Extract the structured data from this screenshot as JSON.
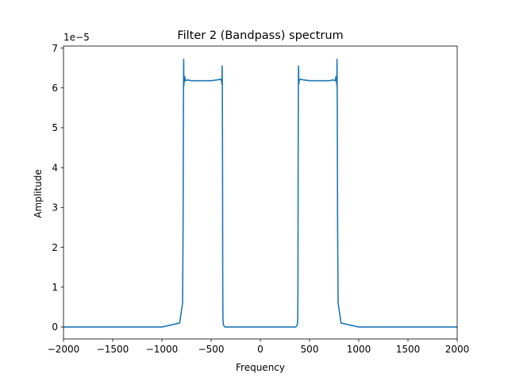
{
  "chart_data": {
    "type": "line",
    "title": "Filter 2 (Bandpass) spectrum",
    "xlabel": "Frequency",
    "ylabel": "Amplitude",
    "y_offset_label": "1e−5",
    "xlim": [
      -2000,
      2000
    ],
    "ylim": [
      -0.3,
      7.05
    ],
    "x_ticks": [
      -2000,
      -1500,
      -1000,
      -500,
      0,
      500,
      1000,
      1500,
      2000
    ],
    "x_tick_labels": [
      "−2000",
      "−1500",
      "−1000",
      "−500",
      "0",
      "500",
      "1000",
      "1500",
      "2000"
    ],
    "y_ticks": [
      0,
      1,
      2,
      3,
      4,
      5,
      6,
      7
    ],
    "y_tick_labels": [
      "0",
      "1",
      "2",
      "3",
      "4",
      "5",
      "6",
      "7"
    ],
    "grid": false,
    "legend": "none",
    "series": [
      {
        "color": "#1f77b4",
        "x": [
          -2000,
          -1000,
          -820,
          -790,
          -785,
          -781,
          -779,
          -777,
          -775,
          -772,
          -768,
          -760,
          -740,
          -700,
          -600,
          -500,
          -440,
          -405,
          -395,
          -391,
          -388,
          -386,
          -384,
          -382,
          -380,
          -375,
          -360,
          -320,
          -200,
          -100,
          0,
          100,
          200,
          320,
          360,
          375,
          380,
          382,
          384,
          386,
          388,
          391,
          395,
          405,
          440,
          500,
          600,
          700,
          740,
          760,
          768,
          772,
          775,
          777,
          779,
          781,
          785,
          790,
          820,
          1000,
          2000
        ],
        "y": [
          0.0,
          0.0,
          0.1,
          0.6,
          2.5,
          5.9,
          6.72,
          6.05,
          6.3,
          6.15,
          6.28,
          6.18,
          6.2,
          6.18,
          6.18,
          6.18,
          6.2,
          6.22,
          6.18,
          6.1,
          6.55,
          6.0,
          4.0,
          1.0,
          0.2,
          0.05,
          0.0,
          0.0,
          0.0,
          0.0,
          0.0,
          0.0,
          0.0,
          0.0,
          0.0,
          0.05,
          0.2,
          1.0,
          4.0,
          6.0,
          6.55,
          6.1,
          6.18,
          6.22,
          6.2,
          6.18,
          6.18,
          6.18,
          6.2,
          6.18,
          6.28,
          6.15,
          6.3,
          6.05,
          6.72,
          5.9,
          2.5,
          0.6,
          0.1,
          0.0,
          0.0
        ]
      }
    ]
  }
}
